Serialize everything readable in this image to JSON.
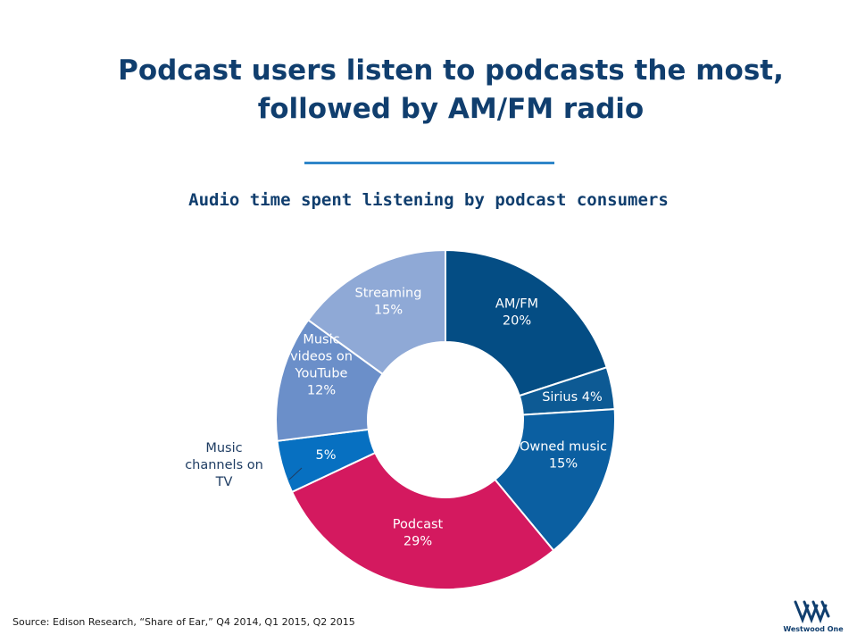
{
  "title": {
    "line1": "Podcast users listen to podcasts the most,",
    "line2": "followed by AM/FM radio"
  },
  "footer": {
    "source": "Source: Edison Research, “Share of Ear,” Q4 2014, Q1 2015, Q2 2015",
    "logo_text": "Westwood One"
  },
  "chart_data": {
    "type": "pie",
    "subtype": "donut",
    "title": "Audio time spent listening by podcast consumers",
    "start": "12 o'clock",
    "direction": "clockwise",
    "slices": [
      {
        "category": "AM/FM",
        "value": 20,
        "label_lines": [
          "AM/FM",
          "20%"
        ],
        "color": "#044d84"
      },
      {
        "category": "Sirius",
        "value": 4,
        "label_lines": [
          "Sirius 4%"
        ],
        "color": "#0d5a94"
      },
      {
        "category": "Owned music",
        "value": 15,
        "label_lines": [
          "Owned music",
          "15%"
        ],
        "color": "#0b5fa1"
      },
      {
        "category": "Podcast",
        "value": 29,
        "label_lines": [
          "Podcast",
          "29%"
        ],
        "color": "#d4195f"
      },
      {
        "category": "Music channels on TV",
        "value": 5,
        "label_lines": [
          "5%"
        ],
        "external_label_lines": [
          "Music",
          "channels on",
          "TV"
        ],
        "color": "#0770c1"
      },
      {
        "category": "Music videos on YouTube",
        "value": 12,
        "label_lines": [
          "Music",
          "videos on",
          "YouTube",
          "12%"
        ],
        "color": "#6b8fc9"
      },
      {
        "category": "Streaming",
        "value": 15,
        "label_lines": [
          "Streaming",
          "15%"
        ],
        "color": "#8fa9d6"
      }
    ]
  }
}
